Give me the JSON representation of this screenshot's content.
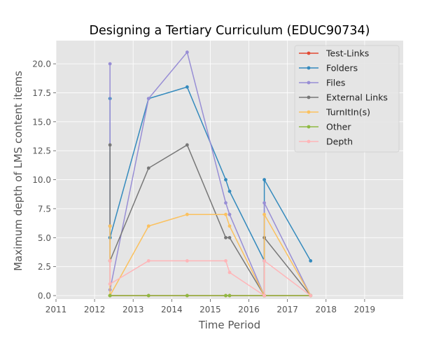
{
  "chart_data": {
    "type": "line",
    "title": "Designing a Tertiary Curriculum (EDUC90734)",
    "xlabel": "Time Period",
    "ylabel": "Maximum depth of LMS content items",
    "xlim": [
      2011,
      2020
    ],
    "ylim": [
      -0.3,
      22.0
    ],
    "xticks": [
      2011,
      2012,
      2013,
      2014,
      2015,
      2016,
      2017,
      2018,
      2019
    ],
    "yticks": [
      0.0,
      2.5,
      5.0,
      7.5,
      10.0,
      12.5,
      15.0,
      17.5,
      20.0
    ],
    "xtick_labels": [
      "2011",
      "2012",
      "2013",
      "2014",
      "2015",
      "2016",
      "2017",
      "2018",
      "2019"
    ],
    "ytick_labels": [
      "0.0",
      "2.5",
      "5.0",
      "7.5",
      "10.0",
      "12.5",
      "15.0",
      "17.5",
      "20.0"
    ],
    "grid": true,
    "legend_position": "top-right",
    "colors": {
      "background": "#e5e5e5",
      "grid": "#ffffff"
    },
    "series": [
      {
        "name": "Test-Links",
        "color": "#e24a33",
        "x": [
          2012.4,
          2012.4,
          2012.4,
          2013.4,
          2014.4,
          2015.4,
          2015.5,
          2016.4,
          2016.4,
          2016.4,
          2017.6
        ],
        "y": [
          0,
          0,
          0,
          0,
          0,
          0,
          0,
          0,
          0,
          0,
          0
        ]
      },
      {
        "name": "Folders",
        "color": "#348abd",
        "x": [
          2012.4,
          2012.4,
          2012.4,
          2013.4,
          2014.4,
          2015.4,
          2015.5,
          2016.4,
          2016.4,
          2016.4,
          2017.6
        ],
        "y": [
          17,
          5,
          5,
          17,
          18,
          10,
          9,
          3,
          0,
          10,
          3
        ]
      },
      {
        "name": "Files",
        "color": "#988ed5",
        "x": [
          2012.4,
          2012.4,
          2012.4,
          2013.4,
          2014.4,
          2015.4,
          2015.5,
          2016.4,
          2016.4,
          2016.4,
          2017.6
        ],
        "y": [
          20,
          3,
          0.5,
          17,
          21,
          8,
          7,
          0,
          0,
          8,
          0
        ]
      },
      {
        "name": "External Links",
        "color": "#777777",
        "x": [
          2012.4,
          2012.4,
          2012.4,
          2013.4,
          2014.4,
          2015.4,
          2015.5,
          2016.4,
          2016.4,
          2016.4,
          2017.6
        ],
        "y": [
          13,
          6,
          3,
          11,
          13,
          5,
          5,
          0,
          0,
          5,
          0
        ]
      },
      {
        "name": "TurnItIn(s)",
        "color": "#fbc15e",
        "x": [
          2012.4,
          2012.4,
          2012.4,
          2013.4,
          2014.4,
          2015.4,
          2015.5,
          2016.4,
          2016.4,
          2016.4,
          2017.6
        ],
        "y": [
          6,
          3,
          0,
          6,
          7,
          7,
          6,
          0,
          0,
          7,
          0
        ]
      },
      {
        "name": "Other",
        "color": "#8eba42",
        "x": [
          2012.4,
          2012.4,
          2012.4,
          2013.4,
          2014.4,
          2015.4,
          2015.5,
          2016.4,
          2016.4,
          2016.4,
          2017.6
        ],
        "y": [
          0,
          0,
          0,
          0,
          0,
          0,
          0,
          0,
          0,
          0,
          0
        ]
      },
      {
        "name": "Depth",
        "color": "#ffb5b8",
        "x": [
          2012.4,
          2012.4,
          2012.4,
          2013.4,
          2014.4,
          2015.4,
          2015.5,
          2016.4,
          2016.4,
          2016.4,
          2017.6
        ],
        "y": [
          3,
          1,
          1,
          3,
          3,
          3,
          2,
          0,
          0,
          3,
          0
        ]
      }
    ]
  }
}
